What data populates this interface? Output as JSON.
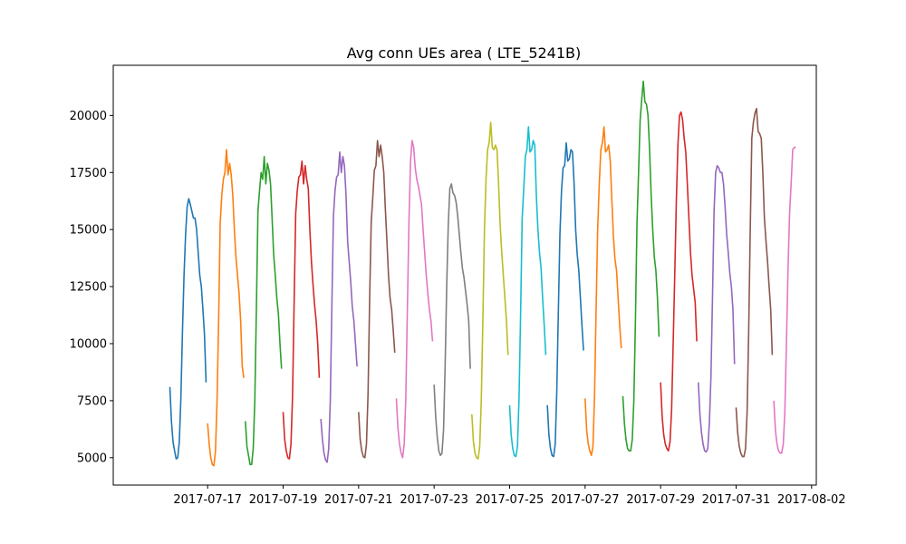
{
  "chart_data": {
    "type": "line",
    "title": "Avg conn UEs area ( LTE_5241B)",
    "xlabel": "",
    "ylabel": "",
    "x_axis": {
      "type": "date",
      "range": [
        "2017-07-14T12:00",
        "2017-08-02T03:00"
      ]
    },
    "ylim": [
      3800,
      22200
    ],
    "yticks": [
      5000,
      7500,
      10000,
      12500,
      15000,
      17500,
      20000
    ],
    "ytick_labels": [
      "5000",
      "7500",
      "10000",
      "12500",
      "15000",
      "17500",
      "20000"
    ],
    "xticks": [
      "2017-07-17",
      "2017-07-19",
      "2017-07-21",
      "2017-07-23",
      "2017-07-25",
      "2017-07-27",
      "2017-07-29",
      "2017-07-31",
      "2017-08-02"
    ],
    "xtick_labels": [
      "2017-07-17",
      "2017-07-19",
      "2017-07-21",
      "2017-07-23",
      "2017-07-25",
      "2017-07-27",
      "2017-07-29",
      "2017-07-31",
      "2017-08-02"
    ],
    "grid": false,
    "legend": "none",
    "series_colors": [
      "#1f77b4",
      "#ff7f0e",
      "#2ca02c",
      "#d62728",
      "#9467bd",
      "#8c564b",
      "#e377c2",
      "#7f7f7f",
      "#bcbd22",
      "#17becf"
    ],
    "series": [
      {
        "date": "2017-07-16",
        "values": [
          8100,
          6600,
          5700,
          5300,
          4950,
          5000,
          5700,
          7600,
          10500,
          13000,
          14800,
          16000,
          16350,
          16100,
          15800,
          15500,
          15500,
          15000,
          14000,
          13000,
          12500,
          11500,
          10400,
          8300
        ]
      },
      {
        "date": "2017-07-17",
        "values": [
          6500,
          5600,
          5000,
          4700,
          4650,
          5300,
          7500,
          11000,
          15300,
          16500,
          17200,
          17500,
          18500,
          17400,
          17900,
          17400,
          16500,
          15000,
          13800,
          13000,
          12200,
          11000,
          9000,
          8500
        ]
      },
      {
        "date": "2017-07-18",
        "values": [
          6600,
          5500,
          5100,
          4700,
          4700,
          5400,
          7500,
          11500,
          15800,
          16700,
          17500,
          17200,
          18200,
          17000,
          17900,
          17600,
          17000,
          15500,
          13900,
          13000,
          12000,
          11300,
          10000,
          8900
        ]
      },
      {
        "date": "2017-07-19",
        "values": [
          7000,
          5800,
          5300,
          5000,
          4950,
          5600,
          7700,
          11800,
          15700,
          16700,
          17300,
          17400,
          18000,
          17000,
          17800,
          17200,
          16800,
          15000,
          13600,
          12600,
          11700,
          11000,
          10000,
          8500
        ]
      },
      {
        "date": "2017-07-20",
        "values": [
          6700,
          5800,
          5200,
          4900,
          4800,
          5400,
          7500,
          11700,
          15600,
          16700,
          17300,
          17400,
          18400,
          17500,
          18200,
          17800,
          16500,
          14500,
          13600,
          12700,
          11600,
          11000,
          10000,
          9000
        ]
      },
      {
        "date": "2017-07-21",
        "values": [
          7000,
          5800,
          5300,
          5050,
          5000,
          5600,
          7800,
          11900,
          15300,
          16400,
          17600,
          17800,
          18900,
          18200,
          18700,
          18200,
          17500,
          15900,
          14500,
          13000,
          12000,
          11500,
          10600,
          9600
        ]
      },
      {
        "date": "2017-07-22",
        "values": [
          7600,
          6300,
          5600,
          5200,
          5000,
          5600,
          7600,
          11500,
          15300,
          18000,
          18900,
          18600,
          17700,
          17200,
          16900,
          16500,
          16100,
          15000,
          14000,
          13000,
          12200,
          11500,
          11000,
          10100
        ]
      },
      {
        "date": "2017-07-23",
        "values": [
          8200,
          6800,
          5900,
          5300,
          5100,
          5200,
          6200,
          9000,
          12500,
          15200,
          16800,
          17000,
          16600,
          16500,
          16200,
          15600,
          14800,
          14000,
          13300,
          12900,
          12300,
          11700,
          11000,
          8900
        ]
      },
      {
        "date": "2017-07-24",
        "values": [
          6900,
          5700,
          5200,
          5000,
          4950,
          5500,
          7500,
          11000,
          15000,
          17200,
          18500,
          18800,
          19700,
          18600,
          18500,
          18700,
          18500,
          17000,
          15200,
          14000,
          13000,
          12000,
          11000,
          9500
        ]
      },
      {
        "date": "2017-07-25",
        "values": [
          7300,
          6000,
          5400,
          5100,
          5050,
          5500,
          7600,
          11300,
          15500,
          16800,
          18200,
          18500,
          19500,
          18400,
          18500,
          18900,
          18700,
          16500,
          15000,
          14000,
          13300,
          12000,
          10800,
          9500
        ]
      },
      {
        "date": "2017-07-26",
        "values": [
          7300,
          6000,
          5400,
          5100,
          5050,
          5600,
          7900,
          11400,
          14800,
          16700,
          17700,
          17800,
          18800,
          18000,
          18100,
          18500,
          18400,
          17000,
          15000,
          13900,
          13200,
          12000,
          10800,
          9700
        ]
      },
      {
        "date": "2017-07-27",
        "values": [
          7600,
          6200,
          5600,
          5300,
          5100,
          5500,
          7700,
          11500,
          15000,
          17000,
          18500,
          18800,
          19500,
          18400,
          18500,
          18700,
          18000,
          16300,
          14700,
          13700,
          13200,
          12000,
          10800,
          9800
        ]
      },
      {
        "date": "2017-07-28",
        "values": [
          7700,
          6500,
          5800,
          5400,
          5300,
          5300,
          5800,
          7500,
          11000,
          15300,
          17500,
          19800,
          20700,
          21500,
          20600,
          20500,
          20000,
          18500,
          16500,
          15000,
          13800,
          13200,
          12000,
          10300
        ]
      },
      {
        "date": "2017-07-29",
        "values": [
          8300,
          6800,
          6000,
          5600,
          5400,
          5300,
          5700,
          7100,
          10000,
          13000,
          16200,
          18700,
          20000,
          20150,
          19800,
          19000,
          18400,
          17000,
          15500,
          14000,
          13000,
          12400,
          11800,
          10100
        ]
      },
      {
        "date": "2017-07-30",
        "values": [
          8300,
          6900,
          6100,
          5600,
          5300,
          5250,
          5400,
          6500,
          8500,
          12000,
          15800,
          17500,
          17800,
          17700,
          17500,
          17500,
          17000,
          16000,
          14800,
          14000,
          13100,
          12500,
          11500,
          9100
        ]
      },
      {
        "date": "2017-07-31",
        "values": [
          7200,
          6100,
          5500,
          5200,
          5050,
          5050,
          5400,
          7000,
          10500,
          15000,
          19000,
          19700,
          20100,
          20300,
          19300,
          19200,
          19000,
          17500,
          15500,
          14500,
          13600,
          12500,
          11500,
          9500
        ]
      },
      {
        "date": "2017-08-01",
        "values": [
          7500,
          6200,
          5600,
          5300,
          5200,
          5200,
          5600,
          7000,
          10000,
          13200,
          15700,
          17000,
          18500,
          18600,
          18600
        ]
      }
    ]
  }
}
